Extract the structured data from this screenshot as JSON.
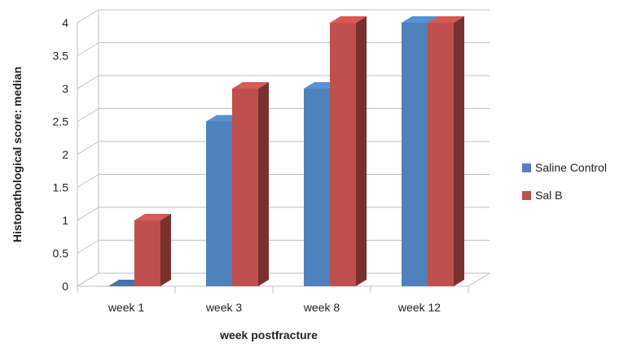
{
  "chart_data": {
    "type": "bar",
    "style": "3d-clustered-column",
    "title": "",
    "xlabel": "week postfracture",
    "ylabel": "Histopathological score: median",
    "categories": [
      "week 1",
      "week 3",
      "week 8",
      "week 12"
    ],
    "ylim": [
      0,
      4
    ],
    "yticks": [
      "0",
      "0.5",
      "1",
      "1.5",
      "2",
      "2.5",
      "3",
      "3.5",
      "4"
    ],
    "grid": true,
    "legend_position": "right",
    "series": [
      {
        "name": "Saline Control",
        "color": "#4f81bd",
        "values": [
          0,
          2.5,
          3,
          4
        ]
      },
      {
        "name": "Sal B",
        "color": "#c0504d",
        "values": [
          1,
          3,
          4,
          4
        ]
      }
    ]
  }
}
